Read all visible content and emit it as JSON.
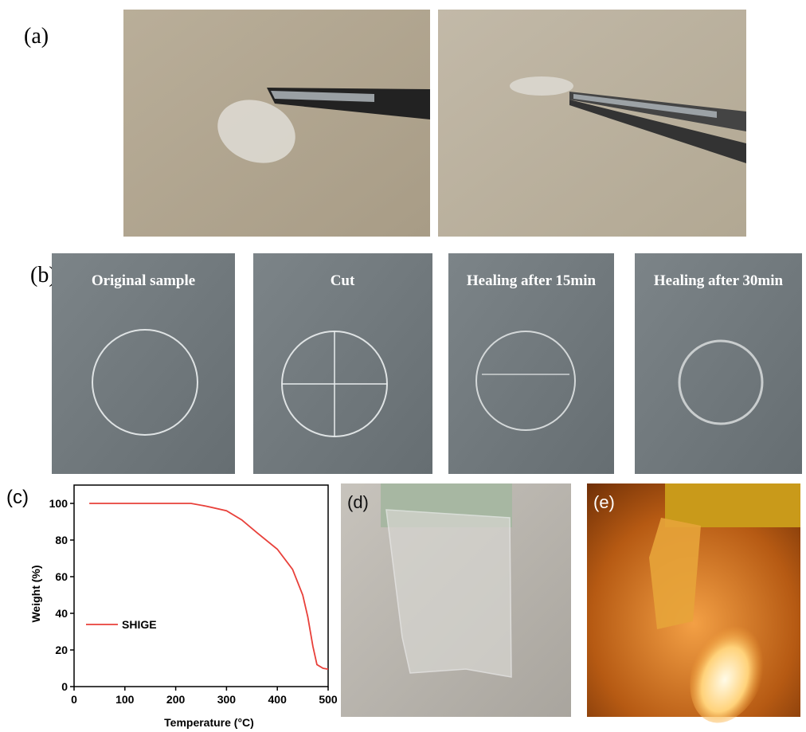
{
  "panels": {
    "a": {
      "label": "(a)"
    },
    "b": {
      "label": "(b)",
      "captions": [
        "Original sample",
        "Cut",
        "Healing after 15min",
        "Healing after 30min"
      ]
    },
    "c": {
      "label": "(c)"
    },
    "d": {
      "label": "(d)"
    },
    "e": {
      "label": "(e)"
    }
  },
  "chart_data": {
    "type": "line",
    "x_label": "Temperature (°C)",
    "y_label": "Weight (%)",
    "x": [
      30,
      100,
      200,
      230,
      260,
      300,
      330,
      360,
      400,
      430,
      450,
      460,
      470,
      478,
      490,
      500
    ],
    "series": [
      {
        "name": "SHIGE",
        "color": "#e8403a",
        "values": [
          100,
          100,
          100,
          100,
          98.5,
          96,
          91,
          84,
          75,
          64,
          50,
          38,
          22,
          12,
          10,
          9.5
        ]
      }
    ],
    "xlim": [
      0,
      500
    ],
    "ylim": [
      0,
      110
    ],
    "xticks": [
      0,
      100,
      200,
      300,
      400,
      500
    ],
    "yticks": [
      0,
      20,
      40,
      60,
      80,
      100
    ],
    "legend": "lower-left",
    "grid": false
  }
}
